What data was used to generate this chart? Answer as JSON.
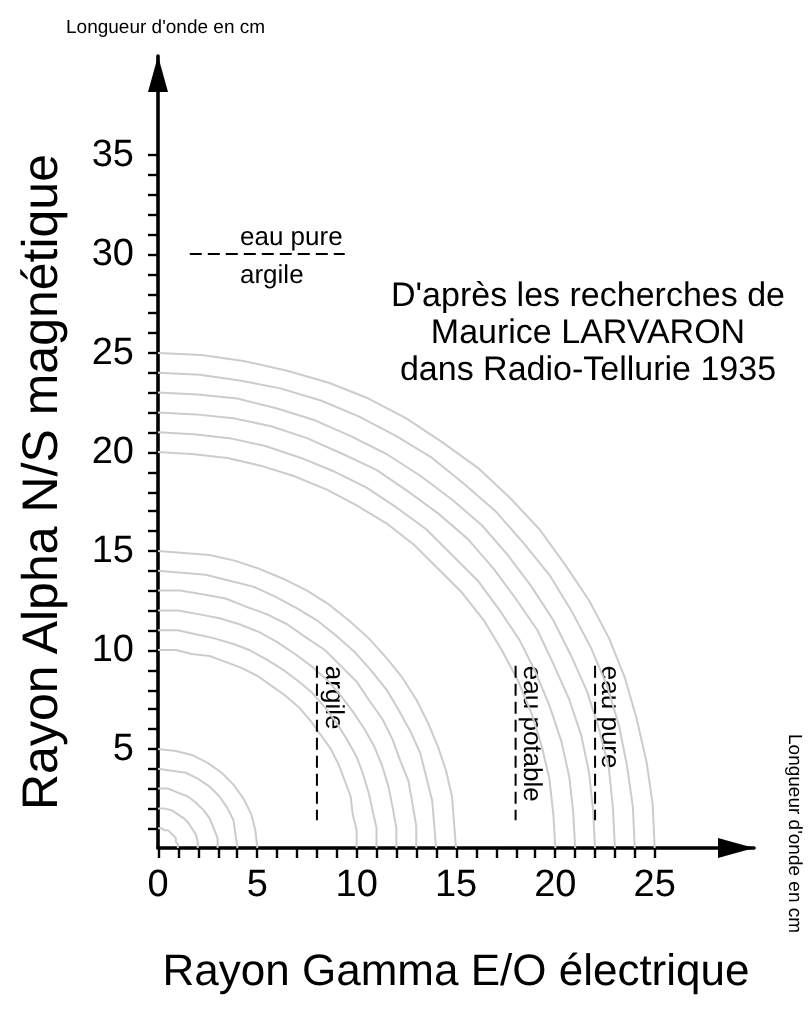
{
  "chart_data": {
    "type": "line",
    "xlabel": "Rayon Gamma E/O électrique",
    "ylabel": "Rayon Alpha N/S magnétique",
    "xlim": [
      0,
      30
    ],
    "ylim": [
      0,
      40
    ],
    "xticks": [
      0,
      {
        "value": 1,
        "label": null
      },
      {
        "value": 2,
        "label": null
      },
      {
        "value": 3,
        "label": null
      },
      {
        "value": 4,
        "label": null
      },
      5,
      {
        "value": 6,
        "label": null
      },
      {
        "value": 7,
        "label": null
      },
      {
        "value": 8,
        "label": null
      },
      {
        "value": 9,
        "label": null
      },
      10,
      {
        "value": 11,
        "label": null
      },
      {
        "value": 12,
        "label": null
      },
      {
        "value": 13,
        "label": null
      },
      {
        "value": 14,
        "label": null
      },
      15,
      {
        "value": 16,
        "label": null
      },
      {
        "value": 17,
        "label": null
      },
      {
        "value": 18,
        "label": null
      },
      {
        "value": 19,
        "label": null
      },
      20,
      {
        "value": 21,
        "label": null
      },
      {
        "value": 22,
        "label": null
      },
      {
        "value": 23,
        "label": null
      },
      {
        "value": 24,
        "label": null
      },
      25
    ],
    "yticks": [
      {
        "value": 1,
        "label": null
      },
      {
        "value": 2,
        "label": null
      },
      {
        "value": 3,
        "label": null
      },
      {
        "value": 4,
        "label": null
      },
      5,
      {
        "value": 6,
        "label": null
      },
      {
        "value": 7,
        "label": null
      },
      {
        "value": 8,
        "label": null
      },
      {
        "value": 9,
        "label": null
      },
      10,
      {
        "value": 11,
        "label": null
      },
      {
        "value": 12,
        "label": null
      },
      {
        "value": 13,
        "label": null
      },
      {
        "value": 14,
        "label": null
      },
      15,
      {
        "value": 16,
        "label": null
      },
      {
        "value": 17,
        "label": null
      },
      {
        "value": 18,
        "label": null
      },
      {
        "value": 19,
        "label": null
      },
      20,
      {
        "value": 21,
        "label": null
      },
      {
        "value": 22,
        "label": null
      },
      {
        "value": 23,
        "label": null
      },
      {
        "value": 24,
        "label": null
      },
      25,
      {
        "value": 26,
        "label": null
      },
      {
        "value": 27,
        "label": null
      },
      {
        "value": 28,
        "label": null
      },
      {
        "value": 29,
        "label": null
      },
      30,
      {
        "value": 31,
        "label": null
      },
      {
        "value": 32,
        "label": null
      },
      {
        "value": 33,
        "label": null
      },
      {
        "value": 34,
        "label": null
      },
      35
    ],
    "marker": "none",
    "line_style": "solid",
    "series": [
      {
        "color": "#cccccc",
        "x": [
          0,
          0.2,
          0.3,
          0.5,
          0.6,
          0.8,
          0.9,
          0.9,
          1,
          1
        ],
        "values": [
          1,
          1,
          0.9,
          0.9,
          0.8,
          0.6,
          0.5,
          0.3,
          0.2,
          0
        ]
      },
      {
        "color": "#cccccc",
        "x": [
          0,
          0.3,
          0.7,
          1,
          1.3,
          1.5,
          1.7,
          1.9,
          2,
          2
        ],
        "values": [
          2,
          2,
          1.9,
          1.7,
          1.5,
          1.3,
          1,
          0.7,
          0.3,
          0
        ]
      },
      {
        "color": "#cccccc",
        "x": [
          0,
          0.5,
          1,
          1.5,
          1.9,
          2.3,
          2.6,
          2.8,
          3,
          3
        ],
        "values": [
          3,
          3,
          2.8,
          2.6,
          2.3,
          1.9,
          1.5,
          1,
          0.5,
          0
        ]
      },
      {
        "color": "#cccccc",
        "x": [
          0,
          0.7,
          1.4,
          2,
          2.6,
          3.1,
          3.5,
          3.8,
          3.9,
          4
        ],
        "values": [
          4,
          3.9,
          3.8,
          3.5,
          3.1,
          2.6,
          2,
          1.4,
          0.7,
          0
        ]
      },
      {
        "color": "#cccccc",
        "x": [
          0,
          0.9,
          1.7,
          2.5,
          3.2,
          3.8,
          4.3,
          4.7,
          4.9,
          5
        ],
        "values": [
          5,
          4.9,
          4.7,
          4.3,
          3.8,
          3.2,
          2.5,
          1.7,
          0.9,
          0
        ]
      },
      {
        "color": "#cccccc",
        "x": [
          0,
          0.9,
          1.7,
          2.6,
          3.4,
          4.2,
          5,
          5.7,
          6.4,
          7.1,
          7.7,
          8.2,
          8.7,
          9.1,
          9.4,
          9.7,
          9.8,
          10,
          10
        ],
        "values": [
          10,
          10,
          9.8,
          9.7,
          9.4,
          9.1,
          8.7,
          8.2,
          7.7,
          7.1,
          6.4,
          5.7,
          5,
          4.2,
          3.4,
          2.6,
          1.7,
          0.9,
          0
        ]
      },
      {
        "color": "#cccccc",
        "x": [
          0,
          1,
          1.9,
          2.8,
          3.8,
          4.6,
          5.5,
          6.3,
          7.1,
          7.8,
          8.4,
          9,
          9.5,
          10,
          10.3,
          10.6,
          10.8,
          11,
          11
        ],
        "values": [
          11,
          11,
          10.8,
          10.6,
          10.3,
          10,
          9.5,
          9,
          8.4,
          7.8,
          7.1,
          6.3,
          5.5,
          4.6,
          3.8,
          2.8,
          1.9,
          1,
          0
        ]
      },
      {
        "color": "#cccccc",
        "x": [
          0,
          1,
          2.1,
          3.1,
          4.1,
          5.1,
          6,
          6.9,
          7.7,
          8.5,
          9.2,
          9.8,
          10.4,
          10.9,
          11.3,
          11.6,
          11.8,
          12,
          12
        ],
        "values": [
          12,
          12,
          11.8,
          11.6,
          11.3,
          10.9,
          10.4,
          9.8,
          9.2,
          8.5,
          7.7,
          6.9,
          6,
          5.1,
          4.1,
          3.1,
          2.1,
          1,
          0
        ]
      },
      {
        "color": "#cccccc",
        "x": [
          0,
          1.1,
          2.3,
          3.4,
          4.4,
          5.5,
          6.5,
          7.5,
          8.4,
          9.2,
          10,
          10.6,
          11.3,
          11.8,
          12.2,
          12.6,
          12.8,
          13,
          13
        ],
        "values": [
          13,
          13,
          12.8,
          12.6,
          12.2,
          11.8,
          11.3,
          10.6,
          10,
          9.2,
          8.4,
          7.5,
          6.5,
          5.5,
          4.4,
          3.4,
          2.3,
          1.1,
          0
        ]
      },
      {
        "color": "#cccccc",
        "x": [
          0,
          1.2,
          2.4,
          3.6,
          4.8,
          5.9,
          7,
          8,
          9,
          9.9,
          10.7,
          11.5,
          12.1,
          12.7,
          13.2,
          13.5,
          13.8,
          13.9,
          14
        ],
        "values": [
          14,
          13.9,
          13.8,
          13.5,
          13.2,
          12.7,
          12.1,
          11.5,
          10.7,
          9.9,
          9,
          8,
          7,
          5.9,
          4.8,
          3.6,
          2.4,
          1.2,
          0
        ]
      },
      {
        "color": "#cccccc",
        "x": [
          0,
          1.3,
          2.6,
          3.9,
          5.1,
          6.3,
          7.5,
          8.6,
          9.6,
          10.6,
          11.5,
          12.3,
          13,
          13.6,
          14.1,
          14.5,
          14.8,
          14.9,
          15
        ],
        "values": [
          15,
          14.9,
          14.8,
          14.5,
          14.1,
          13.6,
          13,
          12.3,
          11.5,
          10.6,
          9.6,
          8.6,
          7.5,
          6.3,
          5.1,
          3.9,
          2.6,
          1.3,
          0
        ]
      },
      {
        "color": "#cccccc",
        "x": [
          0,
          1.7,
          3.5,
          5.2,
          6.8,
          8.5,
          10,
          11.5,
          12.9,
          14.1,
          15.3,
          16.4,
          17.3,
          18.1,
          18.8,
          19.3,
          19.7,
          19.9,
          20
        ],
        "values": [
          20,
          19.9,
          19.7,
          19.3,
          18.8,
          18.1,
          17.3,
          16.4,
          15.3,
          14.1,
          12.9,
          11.5,
          10,
          8.5,
          6.8,
          5.2,
          3.5,
          1.7,
          0
        ]
      },
      {
        "color": "#cccccc",
        "x": [
          0,
          1.8,
          3.6,
          5.4,
          7.2,
          8.9,
          10.5,
          12,
          13.5,
          14.8,
          16.1,
          17.2,
          18.2,
          19,
          19.7,
          20.3,
          20.7,
          20.9,
          21
        ],
        "values": [
          21,
          20.9,
          20.7,
          20.3,
          19.7,
          19,
          18.2,
          17.2,
          16.1,
          14.8,
          13.5,
          12,
          10.5,
          8.9,
          7.2,
          5.4,
          3.6,
          1.8,
          0
        ]
      },
      {
        "color": "#cccccc",
        "x": [
          0,
          1.9,
          3.8,
          5.7,
          7.5,
          9.3,
          11,
          12.6,
          14.1,
          15.6,
          16.9,
          18,
          19.1,
          19.9,
          20.7,
          21.3,
          21.7,
          21.9,
          22
        ],
        "values": [
          22,
          21.9,
          21.7,
          21.3,
          20.7,
          19.9,
          19.1,
          18,
          16.9,
          15.6,
          14.1,
          12.6,
          11,
          9.3,
          7.5,
          5.7,
          3.8,
          1.9,
          0
        ]
      },
      {
        "color": "#cccccc",
        "x": [
          0,
          2,
          4,
          6,
          7.9,
          9.7,
          11.5,
          13.2,
          14.8,
          16.3,
          17.6,
          18.8,
          19.9,
          20.8,
          21.6,
          22.2,
          22.7,
          22.9,
          23
        ],
        "values": [
          23,
          22.9,
          22.7,
          22.2,
          21.6,
          20.8,
          19.9,
          18.8,
          17.6,
          16.3,
          14.8,
          13.2,
          11.5,
          9.7,
          7.9,
          6,
          4,
          2,
          0
        ]
      },
      {
        "color": "#cccccc",
        "x": [
          0,
          2.1,
          4.2,
          6.2,
          8.2,
          10.1,
          12,
          13.8,
          15.4,
          17,
          18.4,
          19.7,
          20.8,
          21.8,
          22.6,
          23.2,
          23.6,
          23.9,
          24
        ],
        "values": [
          24,
          23.9,
          23.6,
          23.2,
          22.6,
          21.8,
          20.8,
          19.7,
          18.4,
          17,
          15.4,
          13.8,
          12,
          10.1,
          8.2,
          6.2,
          4.2,
          2.1,
          0
        ]
      },
      {
        "color": "#cccccc",
        "x": [
          0,
          2.2,
          4.3,
          6.5,
          8.6,
          10.6,
          12.5,
          14.3,
          16.1,
          17.7,
          19.2,
          20.5,
          21.7,
          22.7,
          23.5,
          24.1,
          24.6,
          24.9,
          25
        ],
        "values": [
          25,
          24.9,
          24.6,
          24.1,
          23.5,
          22.7,
          21.7,
          20.5,
          19.2,
          17.7,
          16.1,
          14.3,
          12.5,
          10.6,
          8.6,
          6.5,
          4.3,
          2.2,
          0
        ]
      },
      {
        "color": "#000000",
        "line_style": "dashed",
        "x": [
          1.6,
          9.4
        ],
        "values": [
          30,
          30
        ]
      },
      {
        "color": "#000000",
        "line_style": "dashed",
        "x": [
          8,
          8
        ],
        "values": [
          9.2,
          1.4
        ]
      },
      {
        "color": "#000000",
        "line_style": "dashed",
        "x": [
          18,
          18
        ],
        "values": [
          9.2,
          1.4
        ]
      },
      {
        "color": "#000000",
        "line_style": "dashed",
        "x": [
          22,
          22
        ],
        "values": [
          9.2,
          1.4
        ]
      }
    ],
    "annotations": [
      "D'après les recherches de\nMaurice LARVARON\ndans Radio-Tellurie 1935",
      "Longueur d'onde en cm",
      "Longueur d'onde en cm",
      "eau pure",
      "argile",
      {
        "text": "argile",
        "x": 8.9,
        "y": 9.2
      },
      {
        "text": "eau potable",
        "x": 18.9,
        "y": 9.2
      },
      {
        "text": "eau pure",
        "x": 22.8,
        "y": 9.2
      }
    ]
  }
}
